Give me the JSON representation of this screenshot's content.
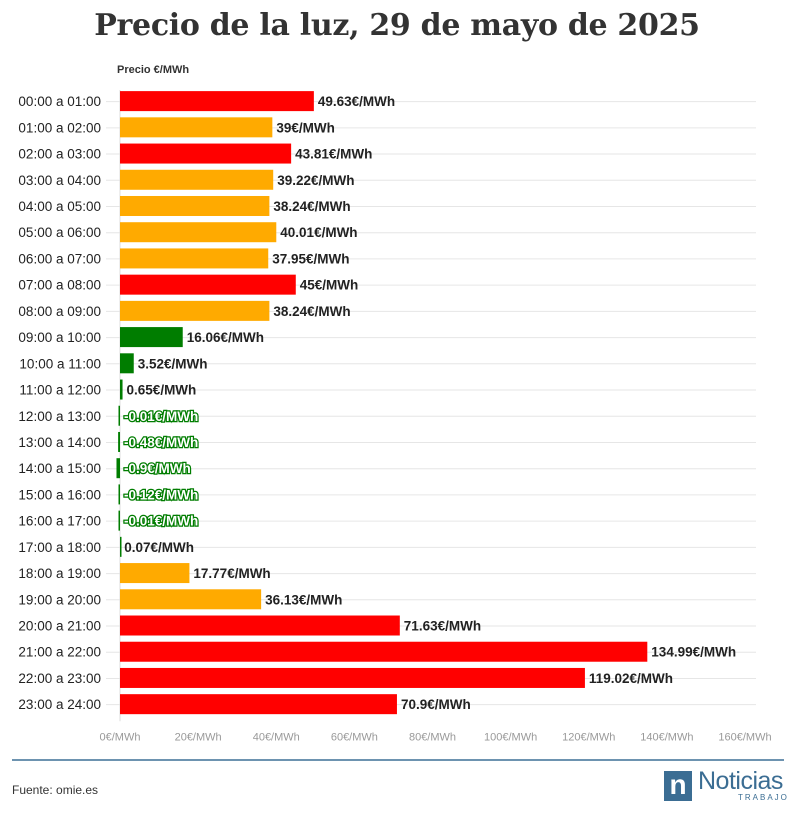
{
  "page": {
    "title": "Precio de la luz, 29 de mayo de 2025",
    "source": "Fuente: omie.es"
  },
  "logo": {
    "word": "Noticias",
    "sub": "TRABAJO",
    "letter": "n"
  },
  "colors": {
    "red": "#ff0000",
    "orange": "#ffaa00",
    "green": "#007d00",
    "accent": "#3b6d93"
  },
  "chart_data": {
    "type": "bar",
    "orientation": "horizontal",
    "title": "Precio de la luz, 29 de mayo de 2025",
    "ylabel": "Precio €/MWh",
    "xlim": [
      0,
      160
    ],
    "xticks": [
      "0€/MWh",
      "20€/MWh",
      "40€/MWh",
      "60€/MWh",
      "80€/MWh",
      "100€/MWh",
      "120€/MWh",
      "140€/MWh",
      "160€/MWh"
    ],
    "tick_values": [
      0,
      20,
      40,
      60,
      80,
      100,
      120,
      140,
      160
    ],
    "categories": [
      "00:00 a 01:00",
      "01:00 a 02:00",
      "02:00 a 03:00",
      "03:00 a 04:00",
      "04:00 a 05:00",
      "05:00 a 06:00",
      "06:00 a 07:00",
      "07:00 a 08:00",
      "08:00 a 09:00",
      "09:00 a 10:00",
      "10:00 a 11:00",
      "11:00 a 12:00",
      "12:00 a 13:00",
      "13:00 a 14:00",
      "14:00 a 15:00",
      "15:00 a 16:00",
      "16:00 a 17:00",
      "17:00 a 18:00",
      "18:00 a 19:00",
      "19:00 a 20:00",
      "20:00 a 21:00",
      "21:00 a 22:00",
      "22:00 a 23:00",
      "23:00 a 24:00"
    ],
    "values": [
      49.63,
      39,
      43.81,
      39.22,
      38.24,
      40.01,
      37.95,
      45,
      38.24,
      16.06,
      3.52,
      0.65,
      -0.01,
      -0.48,
      -0.9,
      -0.12,
      -0.01,
      0.07,
      17.77,
      36.13,
      71.63,
      134.99,
      119.02,
      70.9
    ],
    "labels": [
      "49.63€/MWh",
      "39€/MWh",
      "43.81€/MWh",
      "39.22€/MWh",
      "38.24€/MWh",
      "40.01€/MWh",
      "37.95€/MWh",
      "45€/MWh",
      "38.24€/MWh",
      "16.06€/MWh",
      "3.52€/MWh",
      "0.65€/MWh",
      "-0.01€/MWh",
      "-0.48€/MWh",
      "-0.9€/MWh",
      "-0.12€/MWh",
      "-0.01€/MWh",
      "0.07€/MWh",
      "17.77€/MWh",
      "36.13€/MWh",
      "71.63€/MWh",
      "134.99€/MWh",
      "119.02€/MWh",
      "70.9€/MWh"
    ],
    "bar_colors": [
      "red",
      "orange",
      "red",
      "orange",
      "orange",
      "orange",
      "orange",
      "red",
      "orange",
      "green",
      "green",
      "green",
      "green",
      "green",
      "green",
      "green",
      "green",
      "green",
      "orange",
      "orange",
      "red",
      "red",
      "red",
      "red"
    ]
  }
}
